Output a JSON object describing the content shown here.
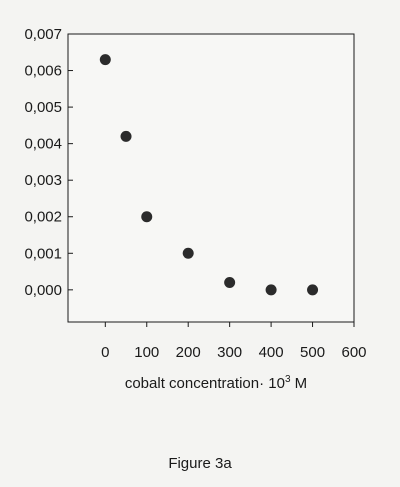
{
  "chart_data": {
    "type": "scatter",
    "title": "",
    "xlabel_main": "cobalt concentration· 10",
    "xlabel_exp": "3",
    "xlabel_unit": " M",
    "ylabel": "",
    "xlim": [
      -90,
      600
    ],
    "ylim": [
      -0.00088,
      0.007
    ],
    "xticks": [
      0,
      100,
      200,
      300,
      400,
      500,
      600
    ],
    "xtick_labels": [
      "0",
      "100",
      "200",
      "300",
      "400",
      "500",
      "600"
    ],
    "yticks": [
      0.0,
      0.001,
      0.002,
      0.003,
      0.004,
      0.005,
      0.006,
      0.007
    ],
    "ytick_labels": [
      "0,000",
      "0,001",
      "0,002",
      "0,003",
      "0,004",
      "0,005",
      "0,006",
      "0,007"
    ],
    "grid": false,
    "marker_color": "#2b2b2b",
    "x": [
      0,
      50,
      100,
      200,
      300,
      400,
      500
    ],
    "y": [
      0.0063,
      0.0042,
      0.002,
      0.001,
      0.0002,
      0.0,
      0.0
    ]
  },
  "caption": "Figure 3a"
}
